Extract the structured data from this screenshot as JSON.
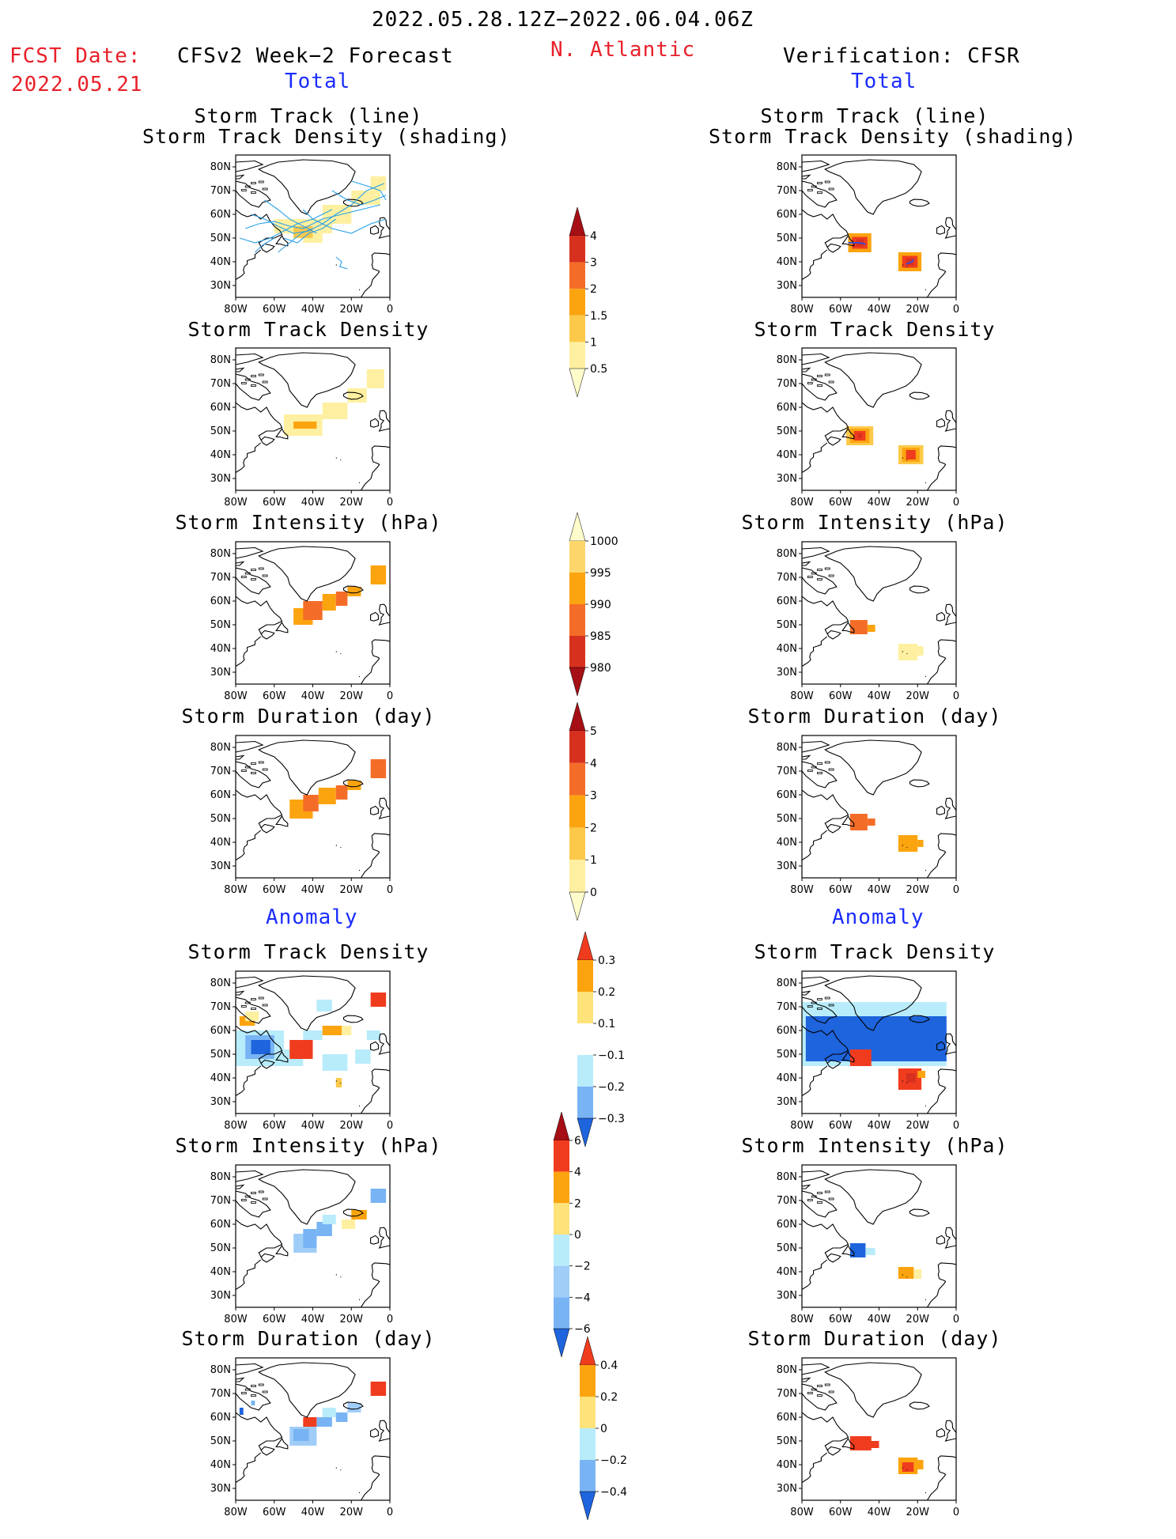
{
  "header": {
    "date_range": "2022.05.28.12Z−2022.06.04.06Z",
    "fcst_date_label": "FCST Date:",
    "fcst_date_value": "2022.05.21",
    "region": "N. Atlantic",
    "left_title": "CFSv2 Week−2 Forecast",
    "right_title": "Verification: CFSR",
    "total_left": "Total",
    "total_right": "Total",
    "anomaly_left": "Anomaly",
    "anomaly_right": "Anomaly"
  },
  "panel_titles": {
    "track_line": "Storm Track (line)",
    "track_density_shading": "Storm Track Density (shading)",
    "track_density": "Storm Track Density",
    "intensity": "Storm Intensity (hPa)",
    "duration": "Storm Duration (day)"
  },
  "map_axes": {
    "lat_labels": [
      "80N",
      "70N",
      "60N",
      "50N",
      "40N",
      "30N"
    ],
    "lon_labels": [
      "80W",
      "60W",
      "40W",
      "20W",
      "0"
    ]
  },
  "colorbars": [
    {
      "id": "density_total",
      "labels": [
        "4",
        "3",
        "2",
        "1.5",
        "1",
        "0.5"
      ],
      "colors": [
        "#a50f15",
        "#d7301f",
        "#f46d28",
        "#fca40f",
        "#fdc94a",
        "#fef0a0",
        "#fffccc"
      ]
    },
    {
      "id": "intensity_total",
      "labels": [
        "1000",
        "995",
        "990",
        "985",
        "980"
      ],
      "colors": [
        "#fffccc",
        "#fdd66b",
        "#fca40f",
        "#f46d28",
        "#d7301f",
        "#a50f15"
      ]
    },
    {
      "id": "duration_total",
      "labels": [
        "5",
        "4",
        "3",
        "2",
        "1",
        "0"
      ],
      "colors": [
        "#a50f15",
        "#d7301f",
        "#f46d28",
        "#fca40f",
        "#fdc94a",
        "#fef0a0",
        "#fffccc"
      ]
    },
    {
      "id": "density_anom",
      "labels": [
        "0.3",
        "0.2",
        "0.1",
        "−0.1",
        "−0.2",
        "−0.3"
      ],
      "colors": [
        "#f03c1e",
        "#fca40f",
        "#fde37a",
        "#ffffff",
        "#b8ecfb",
        "#78b4f4",
        "#1e64dc"
      ]
    },
    {
      "id": "intensity_anom",
      "labels": [
        "6",
        "4",
        "2",
        "0",
        "−2",
        "−4",
        "−6"
      ],
      "colors": [
        "#a50f15",
        "#f03c1e",
        "#fca40f",
        "#fde37a",
        "#b8ecfb",
        "#a0cdf8",
        "#78b4f4",
        "#1e64dc"
      ]
    },
    {
      "id": "duration_anom",
      "labels": [
        "0.4",
        "0.2",
        "0",
        "−0.2",
        "−0.4"
      ],
      "colors": [
        "#f03c1e",
        "#fca40f",
        "#fde37a",
        "#b8ecfb",
        "#78b4f4",
        "#1e64dc"
      ]
    }
  ],
  "colors": {
    "title_red": "#e8202a",
    "title_blue": "#1a2cff",
    "track_line": "#2aa0e8"
  }
}
